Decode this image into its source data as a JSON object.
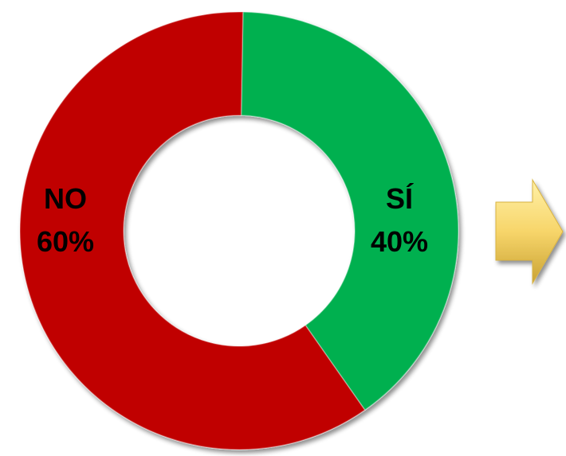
{
  "chart_data": {
    "type": "pie",
    "variant": "donut",
    "categories": [
      "SÍ",
      "NO"
    ],
    "values": [
      40,
      60
    ],
    "percent_labels": [
      "40%",
      "60%"
    ],
    "colors": [
      "#00b050",
      "#c00000"
    ],
    "legend": "none"
  },
  "annotation": {
    "icon": "arrow-right-icon",
    "color": "#ffd966"
  }
}
